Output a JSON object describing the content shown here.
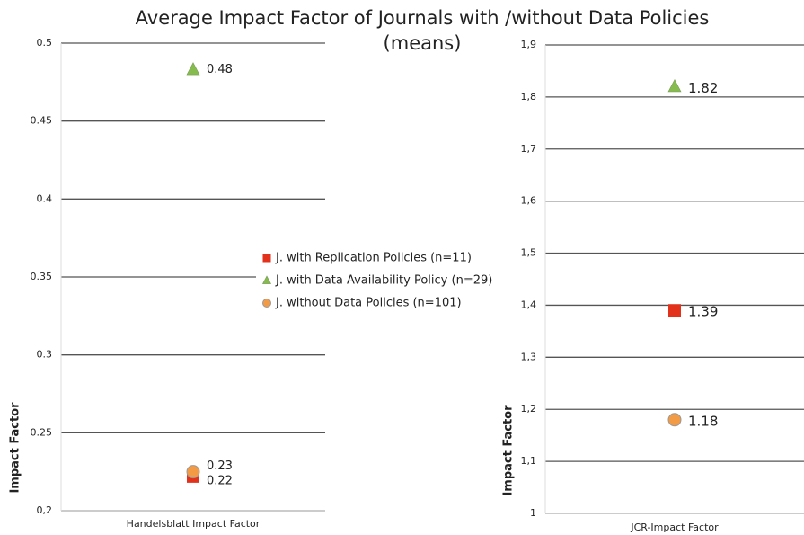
{
  "title": "Average Impact Factor of Journals with /without Data Policies (means)",
  "chart_data": [
    {
      "type": "scatter",
      "categories": [
        "Handelsblatt Impact Factor"
      ],
      "ylabel": "Impact Factor",
      "ylim": [
        0.2,
        0.5
      ],
      "yticks": [
        {
          "value": 0.2,
          "label": "0,2"
        },
        0.25,
        0.3,
        0.35,
        0.4,
        0.45,
        0.5
      ],
      "grid": true,
      "legend": "center",
      "series": [
        {
          "name": "J. with Replication Policies (n=11)",
          "color": "#e2321b",
          "marker": "square",
          "values": [
            0.222
          ],
          "value_labels": [
            "0.22"
          ]
        },
        {
          "name": "J. with Data Availability Policy (n=29)",
          "color": "#86bc4d",
          "marker": "triangle",
          "values": [
            0.483
          ],
          "value_labels": [
            "0.48"
          ]
        },
        {
          "name": "J. without Data Policies (n=101)",
          "color": "#f39a45",
          "marker": "circle",
          "values": [
            0.225
          ],
          "value_labels": [
            "0.23"
          ]
        }
      ]
    },
    {
      "type": "scatter",
      "categories": [
        "JCR-Impact Factor"
      ],
      "ylabel": "Impact Factor",
      "ylim": [
        1,
        1.9
      ],
      "yticks": [
        1,
        {
          "value": 1.1,
          "label": "1,1"
        },
        {
          "value": 1.2,
          "label": "1,2"
        },
        {
          "value": 1.3,
          "label": "1,3"
        },
        {
          "value": 1.4,
          "label": "1,4"
        },
        {
          "value": 1.5,
          "label": "1,5"
        },
        {
          "value": 1.6,
          "label": "1,6"
        },
        {
          "value": 1.7,
          "label": "1,7"
        },
        {
          "value": 1.8,
          "label": "1,8"
        },
        {
          "value": 1.9,
          "label": "1,9"
        }
      ],
      "grid": true,
      "series": [
        {
          "color": "#e2321b",
          "marker": "square",
          "values": [
            1.39
          ]
        },
        {
          "color": "#86bc4d",
          "marker": "triangle",
          "values": [
            1.82
          ]
        },
        {
          "color": "#f39a45",
          "marker": "circle",
          "values": [
            1.18
          ]
        }
      ]
    }
  ]
}
